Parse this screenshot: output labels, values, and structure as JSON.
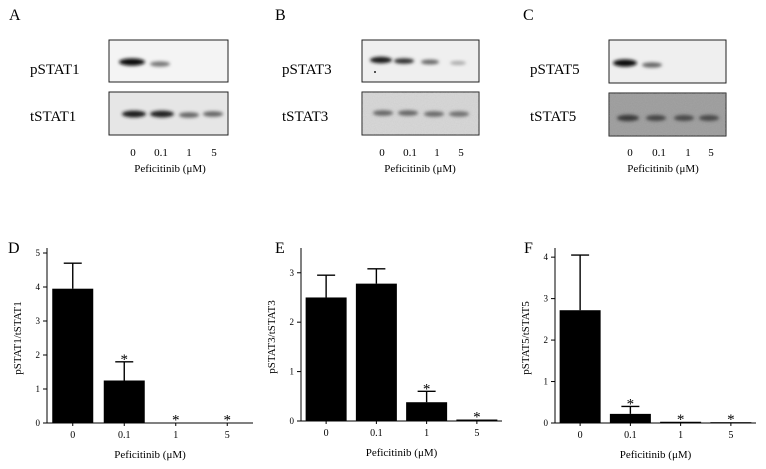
{
  "blots": [
    {
      "panel": "A",
      "bands": [
        "pSTAT1",
        "tSTAT1"
      ],
      "lanes": [
        "0",
        "0.1",
        "1",
        "5"
      ],
      "xlabel": "Peficitinib (μM)"
    },
    {
      "panel": "B",
      "bands": [
        "pSTAT3",
        "tSTAT3"
      ],
      "lanes": [
        "0",
        "0.1",
        "1",
        "5"
      ],
      "xlabel": "Peficitinib (μM)"
    },
    {
      "panel": "C",
      "bands": [
        "pSTAT5",
        "tSTAT5"
      ],
      "lanes": [
        "0",
        "0.1",
        "1",
        "5"
      ],
      "xlabel": "Peficitinib (μM)"
    }
  ],
  "chart_data": [
    {
      "type": "bar",
      "panel": "D",
      "categories": [
        "0",
        "0.1",
        "1",
        "5"
      ],
      "values": [
        3.95,
        1.25,
        0.01,
        0.01
      ],
      "errors": [
        0.75,
        0.55,
        0,
        0
      ],
      "significance": [
        "",
        "*",
        "*",
        "*"
      ],
      "ylabel": "pSTAT1/tSTAT1",
      "xlabel": "Peficitinib (μM)",
      "ylim": [
        0,
        5
      ],
      "yticks": [
        0,
        1,
        2,
        3,
        4,
        5
      ],
      "bar_color": "#000000"
    },
    {
      "type": "bar",
      "panel": "E",
      "categories": [
        "0",
        "0.1",
        "1",
        "5"
      ],
      "values": [
        2.5,
        2.78,
        0.38,
        0.03
      ],
      "errors": [
        0.45,
        0.3,
        0.22,
        0
      ],
      "significance": [
        "",
        "",
        "*",
        "*"
      ],
      "ylabel": "pSTAT3/tSTAT3",
      "xlabel": "Peficitinib (μM)",
      "ylim": [
        0,
        3.4
      ],
      "yticks": [
        0,
        1,
        2,
        3
      ],
      "bar_color": "#000000"
    },
    {
      "type": "bar",
      "panel": "F",
      "categories": [
        "0",
        "0.1",
        "1",
        "5"
      ],
      "values": [
        2.72,
        0.22,
        0.03,
        0.02
      ],
      "errors": [
        1.33,
        0.18,
        0,
        0
      ],
      "significance": [
        "",
        "*",
        "*",
        "*"
      ],
      "ylabel": "pSTAT5/tSTAT5",
      "xlabel": "Peficitinib (μM)",
      "ylim": [
        0,
        4.1
      ],
      "yticks": [
        0,
        1,
        2,
        3,
        4
      ],
      "bar_color": "#000000"
    }
  ]
}
